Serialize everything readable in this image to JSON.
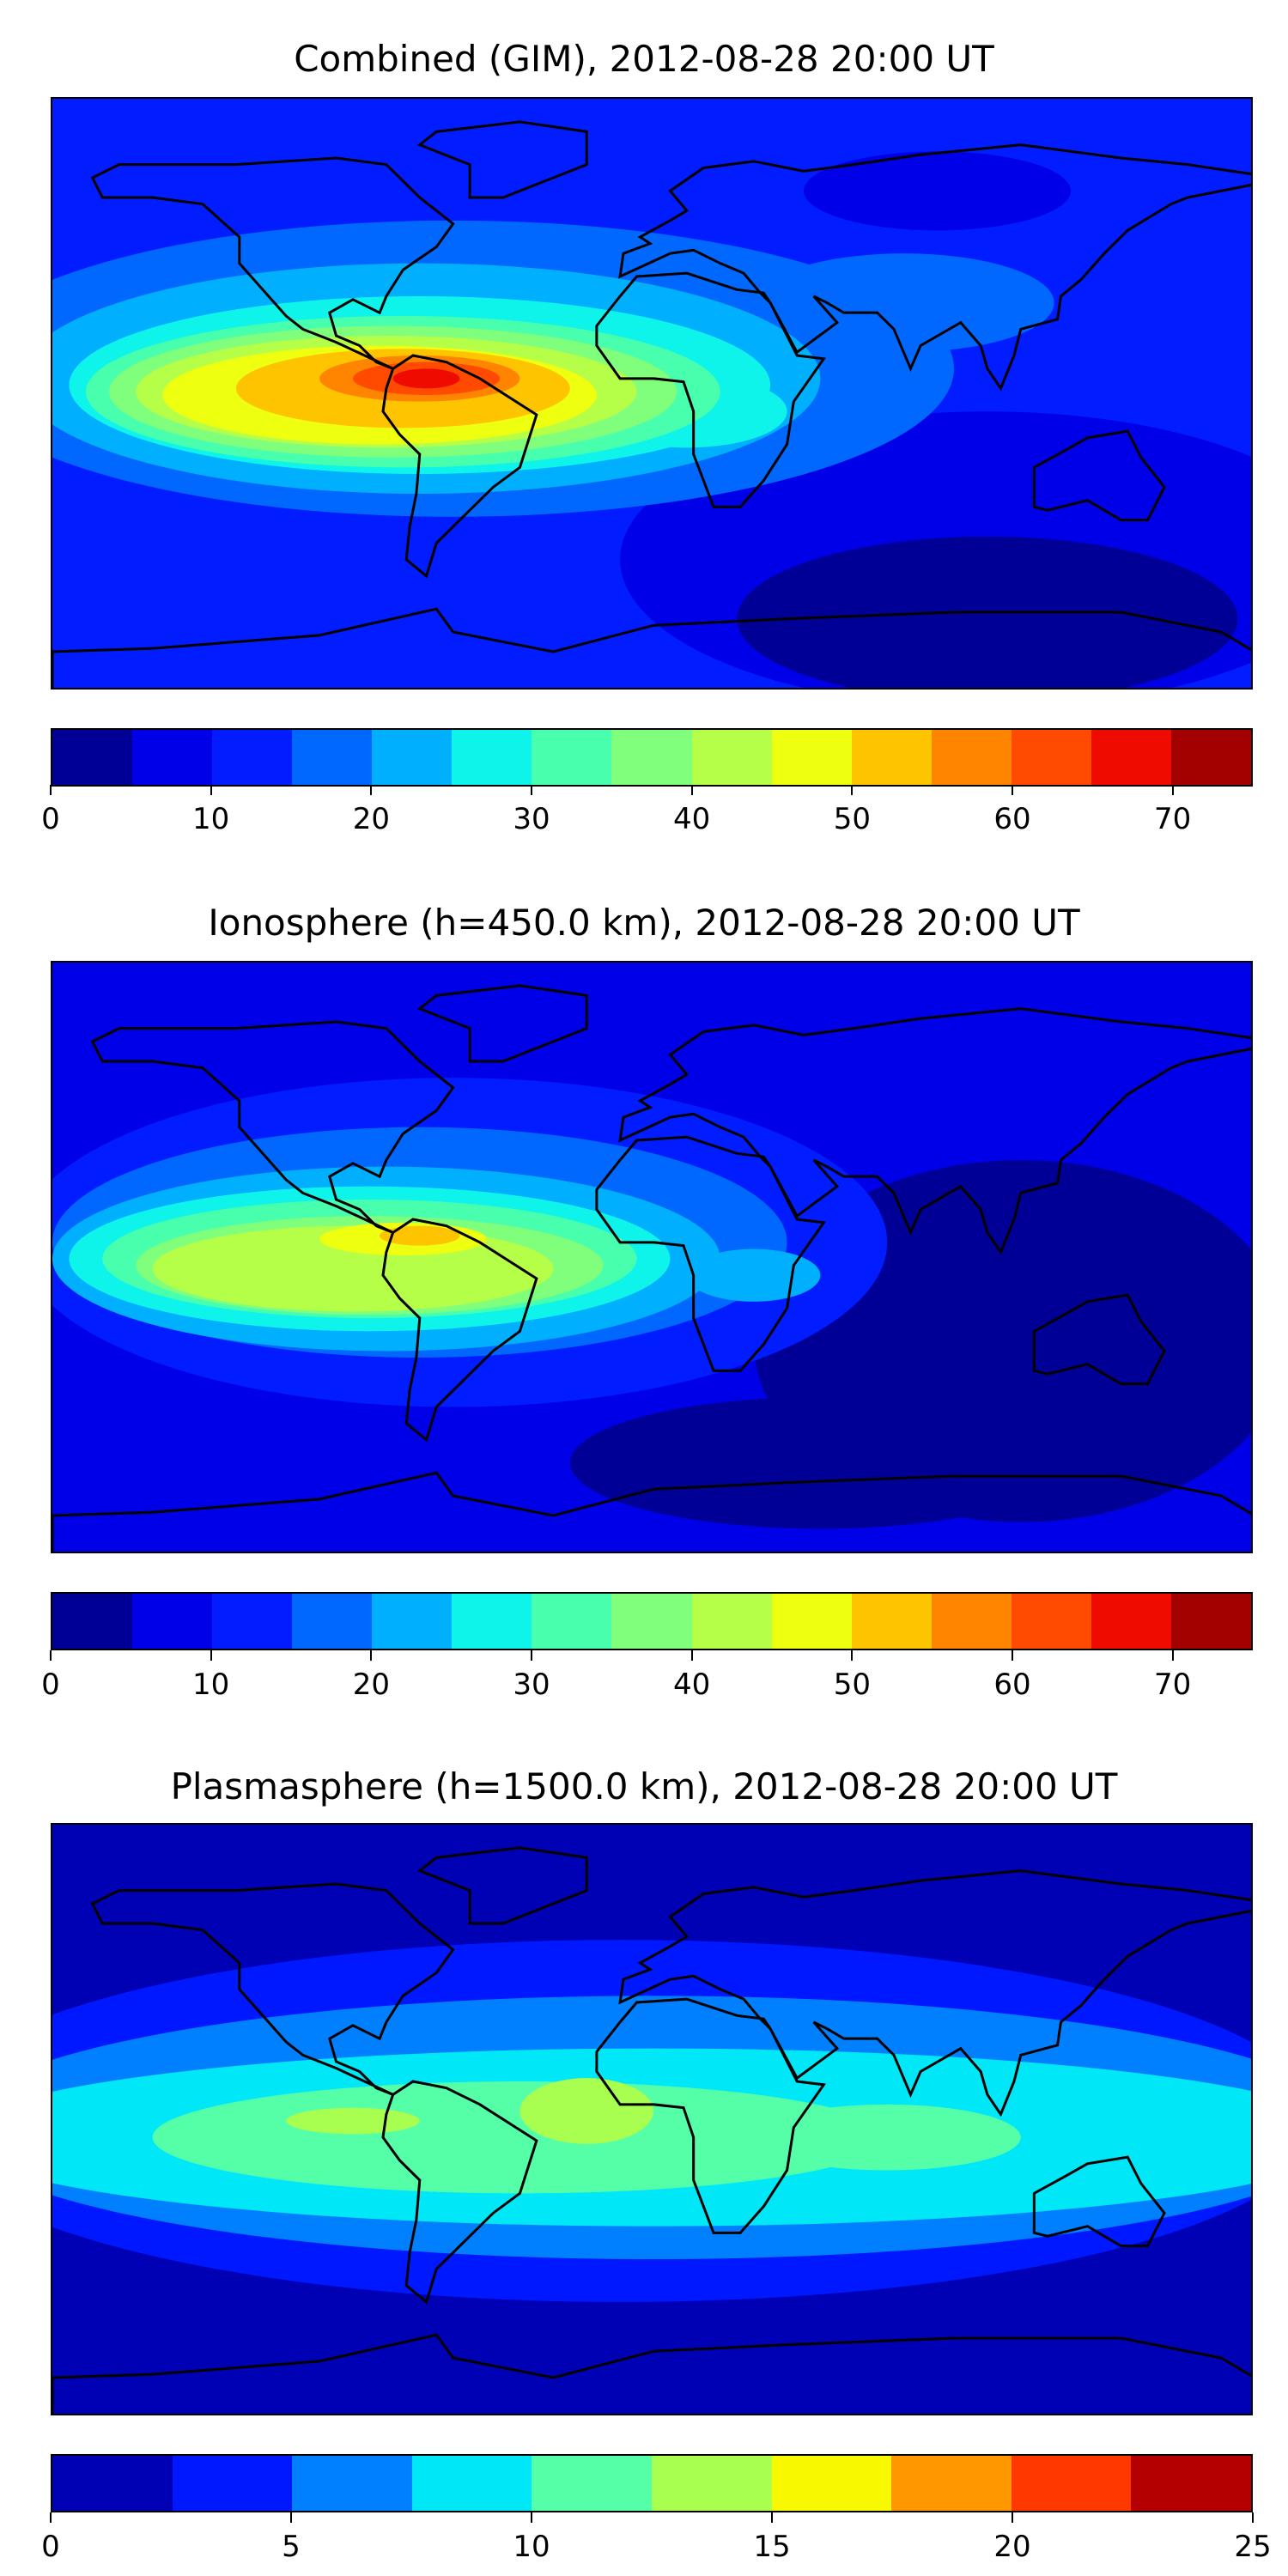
{
  "chart_data": [
    {
      "type": "heatmap",
      "title": "Combined (GIM), 2012-08-28 20:00 UT",
      "projection": "plate carree, lon -180..180, lat -90..90",
      "colorbar": {
        "levels": [
          0,
          5,
          10,
          15,
          20,
          25,
          30,
          35,
          40,
          45,
          50,
          55,
          60,
          65,
          70,
          75
        ],
        "tick_labels": [
          "0",
          "10",
          "20",
          "30",
          "40",
          "50",
          "60",
          "70"
        ],
        "tick_values": [
          0,
          10,
          20,
          30,
          40,
          50,
          60,
          70
        ],
        "range": [
          0,
          75
        ],
        "colors": [
          "#000096",
          "#0000e8",
          "#001cff",
          "#0068ff",
          "#00b0ff",
          "#0ef4ea",
          "#48ffae",
          "#80ff7c",
          "#b6ff48",
          "#eeff10",
          "#ffc400",
          "#ff8500",
          "#ff4a00",
          "#f00b00",
          "#a30000"
        ]
      },
      "background_level": 2,
      "features": [
        {
          "lon": 100,
          "lat": -50,
          "rlon": 110,
          "rlat": 45,
          "level": 1
        },
        {
          "lon": 85,
          "lat": 62,
          "rlon": 40,
          "rlat": 12,
          "level": 1
        },
        {
          "lon": 100,
          "lat": -68,
          "rlon": 75,
          "rlat": 25,
          "level": 0
        },
        {
          "lon": -60,
          "lat": 8,
          "rlon": 150,
          "rlat": 45,
          "level": 3
        },
        {
          "lon": 75,
          "lat": 28,
          "rlon": 45,
          "rlat": 15,
          "level": 3
        },
        {
          "lon": -70,
          "lat": 5,
          "rlon": 120,
          "rlat": 35,
          "level": 4
        },
        {
          "lon": -70,
          "lat": 3,
          "rlon": 105,
          "rlat": 27,
          "level": 5
        },
        {
          "lon": 10,
          "lat": -5,
          "rlon": 30,
          "rlat": 11,
          "level": 5
        },
        {
          "lon": -75,
          "lat": 1,
          "rlon": 95,
          "rlat": 23,
          "level": 6
        },
        {
          "lon": -78,
          "lat": 1,
          "rlon": 85,
          "rlat": 20,
          "level": 7
        },
        {
          "lon": -80,
          "lat": 1,
          "rlon": 75,
          "rlat": 17,
          "level": 8
        },
        {
          "lon": -82,
          "lat": 0,
          "rlon": 65,
          "rlat": 15,
          "level": 9
        },
        {
          "lon": -75,
          "lat": 2,
          "rlon": 50,
          "rlat": 12,
          "level": 10
        },
        {
          "lon": -70,
          "lat": 5,
          "rlon": 30,
          "rlat": 7,
          "level": 11
        },
        {
          "lon": -68,
          "lat": 5,
          "rlon": 22,
          "rlat": 5,
          "level": 12
        },
        {
          "lon": -68,
          "lat": 5,
          "rlon": 10,
          "rlat": 3,
          "level": 13
        }
      ]
    },
    {
      "type": "heatmap",
      "title": "Ionosphere  (h=450.0 km), 2012-08-28 20:00 UT",
      "projection": "plate carree, lon -180..180, lat -90..90",
      "colorbar": {
        "levels": [
          0,
          5,
          10,
          15,
          20,
          25,
          30,
          35,
          40,
          45,
          50,
          55,
          60,
          65,
          70,
          75
        ],
        "tick_labels": [
          "0",
          "10",
          "20",
          "30",
          "40",
          "50",
          "60",
          "70"
        ],
        "tick_values": [
          0,
          10,
          20,
          30,
          40,
          50,
          60,
          70
        ],
        "range": [
          0,
          75
        ],
        "colors": [
          "#000096",
          "#0000e8",
          "#001cff",
          "#0068ff",
          "#00b0ff",
          "#0ef4ea",
          "#48ffae",
          "#80ff7c",
          "#b6ff48",
          "#eeff10",
          "#ffc400",
          "#ff8500",
          "#ff4a00",
          "#f00b00",
          "#a30000"
        ]
      },
      "background_level": 1,
      "features": [
        {
          "lon": 110,
          "lat": -25,
          "rlon": 80,
          "rlat": 55,
          "level": 0
        },
        {
          "lon": 50,
          "lat": -62,
          "rlon": 75,
          "rlat": 20,
          "level": 0
        },
        {
          "lon": -60,
          "lat": 5,
          "rlon": 130,
          "rlat": 50,
          "level": 2
        },
        {
          "lon": -70,
          "lat": 5,
          "rlon": 110,
          "rlat": 35,
          "level": 3
        },
        {
          "lon": -80,
          "lat": 0,
          "rlon": 100,
          "rlat": 28,
          "level": 4
        },
        {
          "lon": 30,
          "lat": -5,
          "rlon": 20,
          "rlat": 8,
          "level": 4
        },
        {
          "lon": -85,
          "lat": 0,
          "rlon": 90,
          "rlat": 22,
          "level": 5
        },
        {
          "lon": -85,
          "lat": 0,
          "rlon": 80,
          "rlat": 18,
          "level": 6
        },
        {
          "lon": -85,
          "lat": -2,
          "rlon": 70,
          "rlat": 15,
          "level": 7
        },
        {
          "lon": -90,
          "lat": -3,
          "rlon": 60,
          "rlat": 13,
          "level": 8
        },
        {
          "lon": -75,
          "lat": 6,
          "rlon": 25,
          "rlat": 5,
          "level": 9
        },
        {
          "lon": -70,
          "lat": 7,
          "rlon": 12,
          "rlat": 3,
          "level": 10
        }
      ]
    },
    {
      "type": "heatmap",
      "title": "Plasmasphere (h=1500.0 km), 2012-08-28 20:00 UT",
      "projection": "plate carree, lon -180..180, lat -90..90",
      "colorbar": {
        "levels": [
          0,
          2.5,
          5,
          7.5,
          10,
          12.5,
          15,
          17.5,
          20,
          22.5,
          25
        ],
        "tick_labels": [
          "0",
          "5",
          "10",
          "15",
          "20",
          "25"
        ],
        "tick_values": [
          0,
          5,
          10,
          15,
          20,
          25
        ],
        "range": [
          0,
          25
        ],
        "colors": [
          "#0000b4",
          "#0018ff",
          "#0080ff",
          "#00e8f8",
          "#55ffa8",
          "#a8ff50",
          "#f8f800",
          "#ff9800",
          "#ff3800",
          "#b40000"
        ]
      },
      "background_level": 0,
      "features": [
        {
          "lon": -10,
          "lat": 0,
          "rlon": 210,
          "rlat": 55,
          "level": 1
        },
        {
          "lon": 0,
          "lat": -2,
          "rlon": 210,
          "rlat": 40,
          "level": 2
        },
        {
          "lon": 0,
          "lat": -5,
          "rlon": 210,
          "rlat": 27,
          "level": 3
        },
        {
          "lon": -40,
          "lat": -5,
          "rlon": 110,
          "rlat": 17,
          "level": 4
        },
        {
          "lon": 70,
          "lat": -5,
          "rlon": 40,
          "rlat": 10,
          "level": 4
        },
        {
          "lon": -20,
          "lat": 3,
          "rlon": 20,
          "rlat": 10,
          "level": 5
        },
        {
          "lon": -90,
          "lat": 0,
          "rlon": 20,
          "rlat": 4,
          "level": 5
        }
      ]
    }
  ]
}
